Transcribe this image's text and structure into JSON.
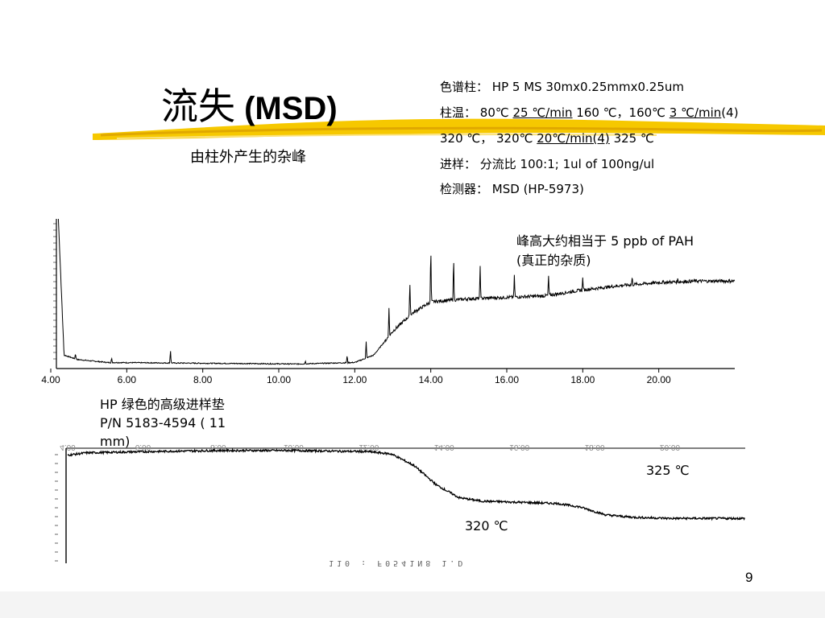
{
  "slide": {
    "title_cn": "流失",
    "title_en": " (MSD)",
    "subtitle": "由柱外产生的杂峰",
    "page_number": "9"
  },
  "conditions": {
    "column_label": "色谱柱：",
    "column_value": " HP 5 MS    30mx0.25mmx0.25um",
    "temp_label": "柱温：",
    "temp_p1": " 80℃ ",
    "temp_u1": "25 ℃/min",
    "temp_p2": " 160 ℃，160℃ ",
    "temp_u2": "3 ℃/min",
    "temp_p3": "(4)",
    "temp2_p1": "320 ℃，  320℃ ",
    "temp2_u1": "20℃/min(4)",
    "temp2_p2": "  325 ℃",
    "inj_label": "进样：",
    "inj_value": " 分流比 100:1; 1ul of 100ng/ul",
    "det_label": "检测器：",
    "det_value": " MSD (HP-5973)"
  },
  "annotations": {
    "peak_note_line1": "峰高大约相当于 5 ppb of PAH",
    "peak_note_line2": "(真正的杂质)",
    "septum_line1": "HP 绿色的高级进样垫",
    "septum_line2": "P/N   5183-4594   (    11",
    "septum_line3": "mm)",
    "temp_325": "325 ℃",
    "temp_320": "320 ℃",
    "lower_filename": "110 : F0541N8 1.D"
  },
  "chart_data": [
    {
      "type": "line",
      "series": [
        {
          "points": [
            [
              4.2,
              100
            ],
            [
              4.35,
              8
            ],
            [
              4.7,
              5
            ],
            [
              5.5,
              3
            ],
            [
              10.5,
              2
            ],
            [
              12.0,
              3
            ],
            [
              12.5,
              8
            ],
            [
              13.0,
              24
            ],
            [
              13.5,
              36
            ],
            [
              14.0,
              44
            ],
            [
              15.0,
              46
            ],
            [
              16.0,
              47
            ],
            [
              17.0,
              48
            ],
            [
              18.0,
              52
            ],
            [
              19.0,
              55
            ],
            [
              20.0,
              57
            ],
            [
              21.0,
              58
            ],
            [
              22.0,
              58
            ]
          ]
        }
      ],
      "peaks": [
        {
          "x": 4.65,
          "height": 4
        },
        {
          "x": 5.6,
          "height": 3
        },
        {
          "x": 7.15,
          "height": 9
        },
        {
          "x": 10.7,
          "height": 2
        },
        {
          "x": 11.8,
          "height": 5
        },
        {
          "x": 12.3,
          "height": 11
        },
        {
          "x": 12.9,
          "height": 20
        },
        {
          "x": 13.45,
          "height": 24
        },
        {
          "x": 14.0,
          "height": 38
        },
        {
          "x": 14.6,
          "height": 30
        },
        {
          "x": 15.3,
          "height": 22
        },
        {
          "x": 16.2,
          "height": 14
        },
        {
          "x": 17.1,
          "height": 13
        },
        {
          "x": 18.0,
          "height": 8
        },
        {
          "x": 19.3,
          "height": 5
        },
        {
          "x": 20.5,
          "height": 2
        }
      ],
      "xlim": [
        4.0,
        22.0
      ],
      "xticks": [
        "4.00",
        "6.00",
        "8.00",
        "10.00",
        "12.00",
        "14.00",
        "16.00",
        "18.00",
        "20.00"
      ],
      "ylim": [
        0,
        100
      ]
    },
    {
      "type": "line",
      "series": [
        {
          "points": [
            [
              4.0,
              94
            ],
            [
              4.5,
              96
            ],
            [
              6,
              97
            ],
            [
              8,
              98
            ],
            [
              10,
              98
            ],
            [
              12,
              97
            ],
            [
              12.6,
              95
            ],
            [
              13.2,
              85
            ],
            [
              13.8,
              68
            ],
            [
              14.4,
              57
            ],
            [
              15.0,
              54
            ],
            [
              16.0,
              53
            ],
            [
              17.0,
              52
            ],
            [
              17.6,
              49
            ],
            [
              18.3,
              42
            ],
            [
              19.0,
              40
            ],
            [
              20.0,
              39
            ],
            [
              21.0,
              39
            ],
            [
              22.0,
              39
            ]
          ]
        }
      ],
      "xlim": [
        4.0,
        22.0
      ],
      "xticks": [
        "4.00",
        "6.00",
        "8.00",
        "10.00",
        "12.00",
        "14.00",
        "16.00",
        "18.00",
        "20.00"
      ],
      "ylim": [
        0,
        100
      ]
    }
  ]
}
